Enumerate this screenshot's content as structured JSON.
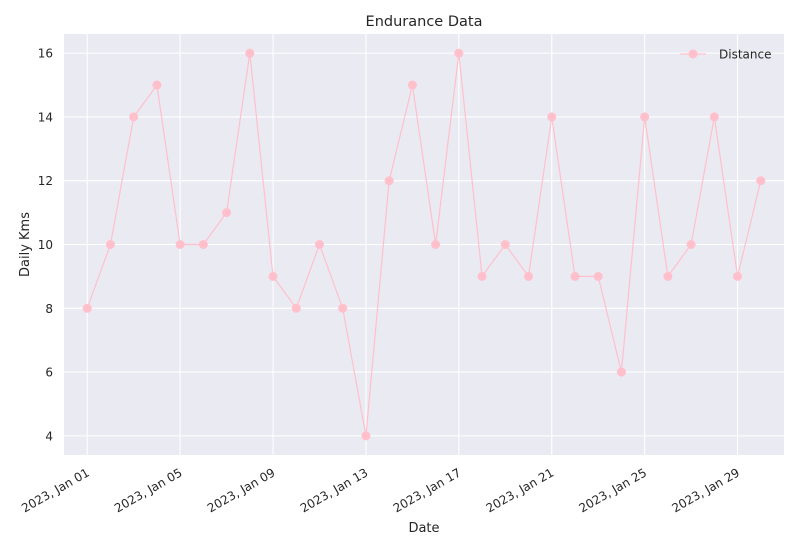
{
  "chart_data": {
    "type": "line",
    "title": "Endurance Data",
    "xlabel": "Date",
    "ylabel": "Daily Kms",
    "x": [
      "2023-01-01",
      "2023-01-02",
      "2023-01-03",
      "2023-01-04",
      "2023-01-05",
      "2023-01-06",
      "2023-01-07",
      "2023-01-08",
      "2023-01-09",
      "2023-01-10",
      "2023-01-11",
      "2023-01-12",
      "2023-01-13",
      "2023-01-14",
      "2023-01-15",
      "2023-01-16",
      "2023-01-17",
      "2023-01-18",
      "2023-01-19",
      "2023-01-20",
      "2023-01-21",
      "2023-01-22",
      "2023-01-23",
      "2023-01-24",
      "2023-01-25",
      "2023-01-26",
      "2023-01-27",
      "2023-01-28",
      "2023-01-29",
      "2023-01-30"
    ],
    "series": [
      {
        "name": "Distance",
        "values": [
          8,
          10,
          14,
          15,
          10,
          10,
          11,
          16,
          9,
          8,
          10,
          8,
          4,
          12,
          15,
          10,
          16,
          9,
          10,
          9,
          14,
          9,
          9,
          6,
          14,
          9,
          10,
          14,
          9,
          12
        ]
      }
    ],
    "xticks": [
      "2023-01-01",
      "2023-01-05",
      "2023-01-09",
      "2023-01-13",
      "2023-01-17",
      "2023-01-21",
      "2023-01-25",
      "2023-01-29"
    ],
    "xtick_labels": [
      "2023, Jan 01",
      "2023, Jan 05",
      "2023, Jan 09",
      "2023, Jan 13",
      "2023, Jan 17",
      "2023, Jan 21",
      "2023, Jan 25",
      "2023, Jan 29"
    ],
    "yticks": [
      4,
      6,
      8,
      10,
      12,
      14,
      16
    ],
    "xlim": [
      "2022-12-31T00:00",
      "2023-01-31T00:00"
    ],
    "ylim": [
      3.4,
      16.6
    ],
    "grid": true,
    "legend": "top-right",
    "colors": {
      "series": "#ffc0cb",
      "background": "#eaeaf2",
      "grid": "#ffffff",
      "text": "#262626"
    }
  }
}
